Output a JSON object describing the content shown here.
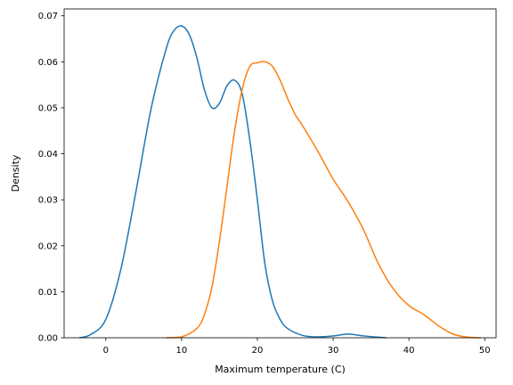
{
  "chart_data": {
    "type": "line",
    "title": "",
    "xlabel": "Maximum temperature (C)",
    "ylabel": "Density",
    "xlim": [
      -5.5,
      51.5
    ],
    "ylim": [
      0,
      0.0715
    ],
    "xticks": [
      0,
      10,
      20,
      30,
      40,
      50
    ],
    "yticks": [
      0.0,
      0.01,
      0.02,
      0.03,
      0.04,
      0.05,
      0.06,
      0.07
    ],
    "ytick_labels": [
      "0.00",
      "0.01",
      "0.02",
      "0.03",
      "0.04",
      "0.05",
      "0.06",
      "0.07"
    ],
    "grid": false,
    "legend": false,
    "series": [
      {
        "color": "#1f77b4",
        "x": [
          -3.5,
          -2,
          0,
          2,
          4,
          6,
          8,
          9,
          10,
          11,
          12,
          13,
          14,
          15,
          16,
          17,
          18,
          19,
          20,
          21,
          22,
          23,
          24,
          26,
          28,
          30,
          32,
          34,
          37
        ],
        "y": [
          0.0,
          0.0007,
          0.004,
          0.015,
          0.032,
          0.05,
          0.063,
          0.0668,
          0.0678,
          0.066,
          0.061,
          0.054,
          0.05,
          0.051,
          0.0548,
          0.056,
          0.053,
          0.043,
          0.03,
          0.016,
          0.008,
          0.004,
          0.002,
          0.0005,
          0.0002,
          0.0004,
          0.0008,
          0.0004,
          0.0
        ]
      },
      {
        "color": "#ff7f0e",
        "x": [
          8,
          10,
          12,
          13,
          14,
          15,
          16,
          17,
          18,
          19,
          20,
          21,
          22,
          23,
          24,
          25,
          26,
          28,
          30,
          32,
          34,
          36,
          38,
          40,
          42,
          44,
          46,
          48,
          49.5
        ],
        "y": [
          0.0,
          0.0002,
          0.002,
          0.005,
          0.011,
          0.021,
          0.033,
          0.045,
          0.054,
          0.059,
          0.0598,
          0.06,
          0.059,
          0.056,
          0.052,
          0.0485,
          0.046,
          0.0405,
          0.0345,
          0.0295,
          0.0235,
          0.016,
          0.0105,
          0.007,
          0.005,
          0.0025,
          0.0007,
          0.0001,
          0.0
        ]
      }
    ]
  }
}
